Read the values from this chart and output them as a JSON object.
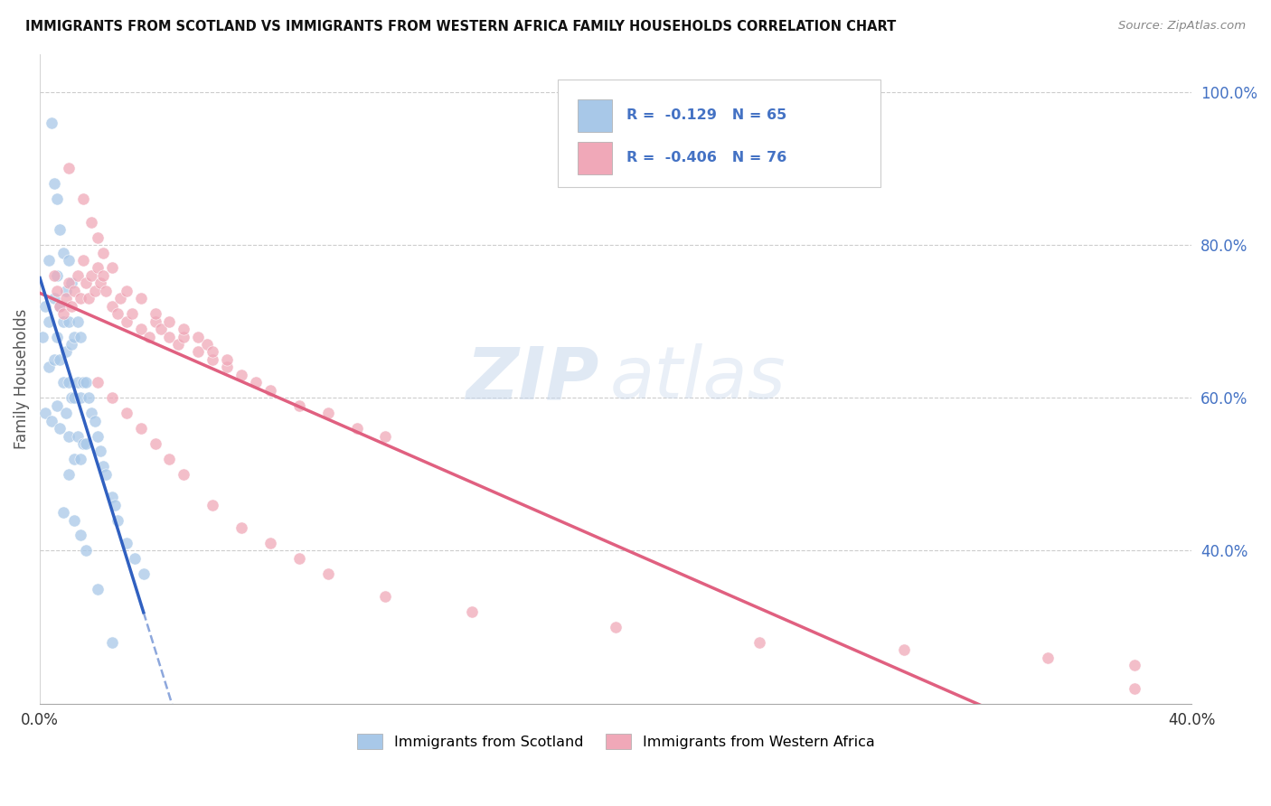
{
  "title": "IMMIGRANTS FROM SCOTLAND VS IMMIGRANTS FROM WESTERN AFRICA FAMILY HOUSEHOLDS CORRELATION CHART",
  "source": "Source: ZipAtlas.com",
  "ylabel": "Family Households",
  "xlim": [
    0.0,
    0.4
  ],
  "ylim": [
    0.2,
    1.05
  ],
  "x_ticks": [
    0.0,
    0.05,
    0.1,
    0.15,
    0.2,
    0.25,
    0.3,
    0.35,
    0.4
  ],
  "y_ticks_right": [
    0.4,
    0.6,
    0.8,
    1.0
  ],
  "y_tick_labels_right": [
    "40.0%",
    "60.0%",
    "80.0%",
    "100.0%"
  ],
  "scotland_color": "#A8C8E8",
  "western_africa_color": "#F0A8B8",
  "scotland_line_color": "#3060C0",
  "western_africa_line_color": "#E06080",
  "scotland_R": -0.129,
  "scotland_N": 65,
  "western_africa_R": -0.406,
  "western_africa_N": 76,
  "watermark_zip": "ZIP",
  "watermark_atlas": "atlas",
  "legend_text_color": "#4472C4",
  "scotland_points_x": [
    0.001,
    0.002,
    0.002,
    0.003,
    0.003,
    0.003,
    0.004,
    0.004,
    0.005,
    0.005,
    0.005,
    0.006,
    0.006,
    0.006,
    0.006,
    0.007,
    0.007,
    0.007,
    0.007,
    0.008,
    0.008,
    0.008,
    0.009,
    0.009,
    0.009,
    0.01,
    0.01,
    0.01,
    0.01,
    0.011,
    0.011,
    0.011,
    0.012,
    0.012,
    0.012,
    0.013,
    0.013,
    0.013,
    0.014,
    0.014,
    0.014,
    0.015,
    0.015,
    0.016,
    0.016,
    0.017,
    0.018,
    0.019,
    0.02,
    0.021,
    0.022,
    0.023,
    0.025,
    0.026,
    0.027,
    0.03,
    0.033,
    0.036,
    0.008,
    0.01,
    0.012,
    0.014,
    0.016,
    0.02,
    0.025
  ],
  "scotland_points_y": [
    0.68,
    0.58,
    0.72,
    0.64,
    0.7,
    0.78,
    0.57,
    0.96,
    0.65,
    0.73,
    0.88,
    0.59,
    0.68,
    0.76,
    0.86,
    0.56,
    0.65,
    0.72,
    0.82,
    0.62,
    0.7,
    0.79,
    0.58,
    0.66,
    0.74,
    0.55,
    0.62,
    0.7,
    0.78,
    0.6,
    0.67,
    0.75,
    0.52,
    0.6,
    0.68,
    0.55,
    0.62,
    0.7,
    0.52,
    0.6,
    0.68,
    0.54,
    0.62,
    0.54,
    0.62,
    0.6,
    0.58,
    0.57,
    0.55,
    0.53,
    0.51,
    0.5,
    0.47,
    0.46,
    0.44,
    0.41,
    0.39,
    0.37,
    0.45,
    0.5,
    0.44,
    0.42,
    0.4,
    0.35,
    0.28
  ],
  "western_africa_points_x": [
    0.005,
    0.006,
    0.007,
    0.008,
    0.009,
    0.01,
    0.011,
    0.012,
    0.013,
    0.014,
    0.015,
    0.016,
    0.017,
    0.018,
    0.019,
    0.02,
    0.021,
    0.022,
    0.023,
    0.025,
    0.027,
    0.028,
    0.03,
    0.032,
    0.035,
    0.038,
    0.04,
    0.042,
    0.045,
    0.048,
    0.05,
    0.055,
    0.058,
    0.06,
    0.065,
    0.07,
    0.075,
    0.08,
    0.09,
    0.1,
    0.11,
    0.12,
    0.01,
    0.015,
    0.018,
    0.02,
    0.022,
    0.025,
    0.03,
    0.035,
    0.04,
    0.045,
    0.05,
    0.055,
    0.06,
    0.065,
    0.02,
    0.025,
    0.03,
    0.035,
    0.04,
    0.045,
    0.05,
    0.06,
    0.07,
    0.08,
    0.09,
    0.1,
    0.12,
    0.15,
    0.2,
    0.25,
    0.3,
    0.35,
    0.38,
    0.38
  ],
  "western_africa_points_y": [
    0.76,
    0.74,
    0.72,
    0.71,
    0.73,
    0.75,
    0.72,
    0.74,
    0.76,
    0.73,
    0.78,
    0.75,
    0.73,
    0.76,
    0.74,
    0.77,
    0.75,
    0.76,
    0.74,
    0.72,
    0.71,
    0.73,
    0.7,
    0.71,
    0.69,
    0.68,
    0.7,
    0.69,
    0.68,
    0.67,
    0.68,
    0.66,
    0.67,
    0.65,
    0.64,
    0.63,
    0.62,
    0.61,
    0.59,
    0.58,
    0.56,
    0.55,
    0.9,
    0.86,
    0.83,
    0.81,
    0.79,
    0.77,
    0.74,
    0.73,
    0.71,
    0.7,
    0.69,
    0.68,
    0.66,
    0.65,
    0.62,
    0.6,
    0.58,
    0.56,
    0.54,
    0.52,
    0.5,
    0.46,
    0.43,
    0.41,
    0.39,
    0.37,
    0.34,
    0.32,
    0.3,
    0.28,
    0.27,
    0.26,
    0.25,
    0.22
  ]
}
